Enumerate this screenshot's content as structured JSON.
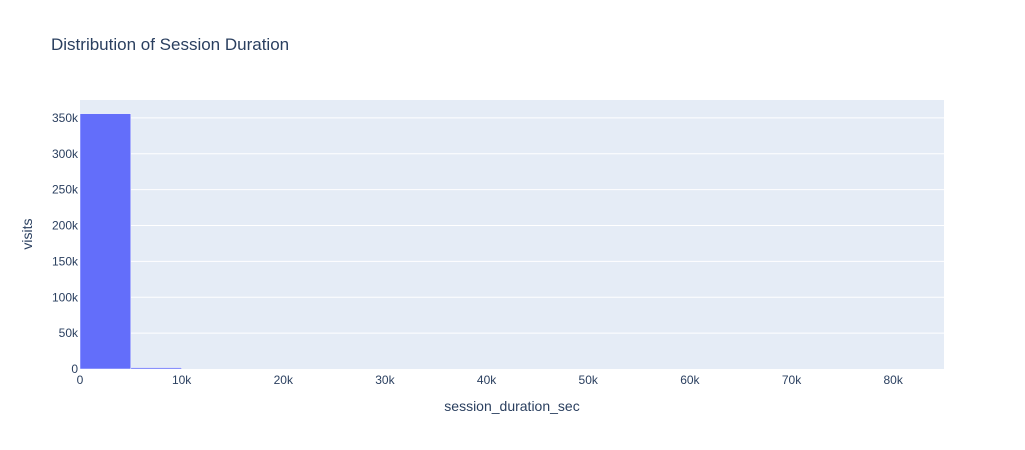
{
  "chart_data": {
    "type": "bar",
    "title": "Distribution of Session Duration",
    "xlabel": "session_duration_sec",
    "ylabel": "visits",
    "x_bin_edges": [
      0,
      5000,
      10000
    ],
    "values": [
      356000,
      2000
    ],
    "xlim": [
      0,
      85000
    ],
    "ylim": [
      0,
      375000
    ],
    "x_ticks": [
      0,
      10000,
      20000,
      30000,
      40000,
      50000,
      60000,
      70000,
      80000
    ],
    "x_tick_labels": [
      "0",
      "10k",
      "20k",
      "30k",
      "40k",
      "50k",
      "60k",
      "70k",
      "80k"
    ],
    "y_ticks": [
      0,
      50000,
      100000,
      150000,
      200000,
      250000,
      300000,
      350000
    ],
    "y_tick_labels": [
      "0",
      "50k",
      "100k",
      "150k",
      "200k",
      "250k",
      "300k",
      "350k"
    ],
    "grid": true,
    "legend": "none",
    "bar_color": "#636efa",
    "plot_bg": "#e5ecf6",
    "grid_color": "#ffffff"
  }
}
